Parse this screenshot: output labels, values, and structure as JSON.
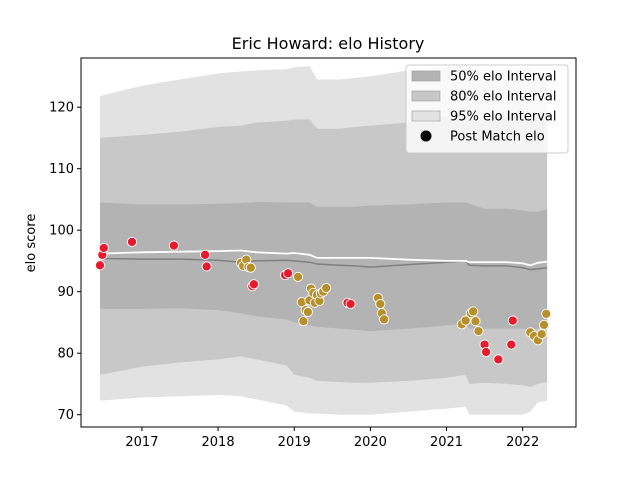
{
  "chart_data": {
    "type": "scatter",
    "title": "Eric Howard: elo History",
    "xlabel": "",
    "ylabel": "elo score",
    "xlim": [
      2016.2,
      2022.7
    ],
    "ylim": [
      68,
      128
    ],
    "xticks": [
      2017,
      2018,
      2019,
      2020,
      2021,
      2022
    ],
    "xtick_labels": [
      "2017",
      "2018",
      "2019",
      "2020",
      "2021",
      "2022"
    ],
    "yticks": [
      70,
      80,
      90,
      100,
      110,
      120
    ],
    "ytick_labels": [
      "70",
      "80",
      "90",
      "100",
      "110",
      "120"
    ],
    "grid": false,
    "legend": {
      "position": "top-right",
      "entries": [
        {
          "label": "50% elo Interval",
          "color": "#b3b3b3",
          "kind": "patch"
        },
        {
          "label": "80% elo Interval",
          "color": "#c8c8c8",
          "kind": "patch"
        },
        {
          "label": "95% elo Interval",
          "color": "#e2e2e2",
          "kind": "patch"
        },
        {
          "label": "Post Match elo",
          "color": "#000000",
          "kind": "marker"
        }
      ]
    },
    "colors": {
      "band50": "#b3b3b3",
      "band80": "#c8c8c8",
      "band95": "#e2e2e2",
      "median_line": "#808080",
      "estimate_line": "#ffffff",
      "win_marker": "#e8192c",
      "loss_marker": "#b8902a"
    },
    "bands": {
      "x": [
        2016.45,
        2017.0,
        2017.5,
        2018.0,
        2018.3,
        2018.5,
        2018.9,
        2019.0,
        2019.2,
        2019.3,
        2019.6,
        2019.8,
        2020.0,
        2020.5,
        2021.0,
        2021.25,
        2021.3,
        2021.5,
        2021.8,
        2022.0,
        2022.1,
        2022.2,
        2022.32
      ],
      "p95_upper": [
        121.8,
        123.5,
        124.5,
        125.5,
        125.8,
        126.0,
        126.2,
        126.5,
        126.7,
        124.5,
        124.5,
        124.8,
        125.0,
        126.0,
        126.5,
        126.8,
        126.0,
        126.0,
        126.2,
        126.2,
        126.5,
        125.5,
        125.2
      ],
      "p80_upper": [
        115.0,
        115.5,
        116.0,
        116.8,
        117.0,
        117.5,
        117.8,
        118.0,
        118.0,
        116.5,
        116.5,
        116.8,
        117.0,
        117.5,
        118.5,
        118.8,
        118.0,
        118.0,
        118.5,
        118.5,
        119.0,
        118.0,
        117.8
      ],
      "p50_upper": [
        104.5,
        104.2,
        104.2,
        104.3,
        104.4,
        104.6,
        104.5,
        104.5,
        104.5,
        103.8,
        103.8,
        103.8,
        104.0,
        104.2,
        104.5,
        104.5,
        104.3,
        103.5,
        103.5,
        103.2,
        103.0,
        103.0,
        103.4
      ],
      "median": [
        95.4,
        95.3,
        95.3,
        95.1,
        94.8,
        95.0,
        95.1,
        95.0,
        94.8,
        94.5,
        94.3,
        94.2,
        94.0,
        94.4,
        94.8,
        95.0,
        94.3,
        94.2,
        94.2,
        93.9,
        93.6,
        93.7,
        93.9
      ],
      "estimate": [
        96.2,
        96.4,
        96.5,
        96.6,
        96.7,
        96.4,
        96.2,
        96.3,
        96.0,
        95.5,
        95.5,
        95.5,
        95.5,
        95.2,
        95.0,
        95.0,
        94.8,
        94.8,
        94.8,
        94.6,
        94.3,
        94.7,
        94.9
      ],
      "p50_lower": [
        87.2,
        87.2,
        87.3,
        87.0,
        86.5,
        86.0,
        85.5,
        85.0,
        84.5,
        84.3,
        84.0,
        83.8,
        83.6,
        84.0,
        84.5,
        84.8,
        84.0,
        84.0,
        84.0,
        84.0,
        83.8,
        84.0,
        84.3
      ],
      "p80_lower": [
        76.5,
        77.8,
        78.5,
        79.0,
        79.5,
        79.0,
        78.0,
        76.5,
        76.0,
        75.5,
        75.3,
        75.2,
        75.2,
        75.5,
        76.0,
        76.5,
        75.0,
        75.2,
        75.0,
        74.8,
        74.5,
        75.0,
        75.3
      ],
      "p95_lower": [
        72.3,
        72.8,
        73.0,
        73.2,
        73.0,
        72.5,
        71.5,
        70.5,
        70.2,
        70.2,
        70.0,
        70.0,
        70.0,
        70.5,
        71.0,
        71.3,
        70.0,
        70.0,
        70.0,
        70.0,
        70.5,
        72.0,
        72.3
      ]
    },
    "series": [
      {
        "name": "",
        "kind": "win",
        "x": [
          2016.45,
          2016.48,
          2016.5,
          2016.87,
          2017.42,
          2017.83,
          2017.85,
          2018.45,
          2018.47,
          2018.88,
          2018.92,
          2019.7,
          2019.74,
          2021.5,
          2021.52,
          2021.68,
          2021.85,
          2021.87
        ],
        "y": [
          94.3,
          96.0,
          97.1,
          98.1,
          97.5,
          96.0,
          94.1,
          90.9,
          91.2,
          92.7,
          93.0,
          88.2,
          88.0,
          81.4,
          80.2,
          79.0,
          81.4,
          85.3
        ]
      },
      {
        "name": "",
        "kind": "loss",
        "x": [
          2018.3,
          2018.33,
          2018.37,
          2018.4,
          2018.43,
          2019.05,
          2019.1,
          2019.12,
          2019.15,
          2019.18,
          2019.2,
          2019.22,
          2019.25,
          2019.27,
          2019.3,
          2019.33,
          2019.35,
          2019.38,
          2019.42,
          2020.1,
          2020.13,
          2020.15,
          2020.18,
          2021.2,
          2021.25,
          2021.32,
          2021.35,
          2021.38,
          2021.42,
          2022.1,
          2022.15,
          2022.2,
          2022.25,
          2022.28,
          2022.31
        ],
        "y": [
          94.7,
          94.2,
          95.2,
          94.0,
          93.9,
          92.4,
          88.3,
          85.2,
          87.0,
          86.7,
          88.6,
          90.5,
          89.8,
          88.2,
          89.5,
          88.5,
          89.7,
          90.0,
          90.6,
          89.0,
          88.0,
          86.5,
          85.5,
          84.7,
          85.3,
          86.5,
          86.8,
          85.2,
          83.6,
          83.4,
          82.8,
          82.1,
          83.1,
          84.6,
          86.4
        ]
      }
    ]
  }
}
